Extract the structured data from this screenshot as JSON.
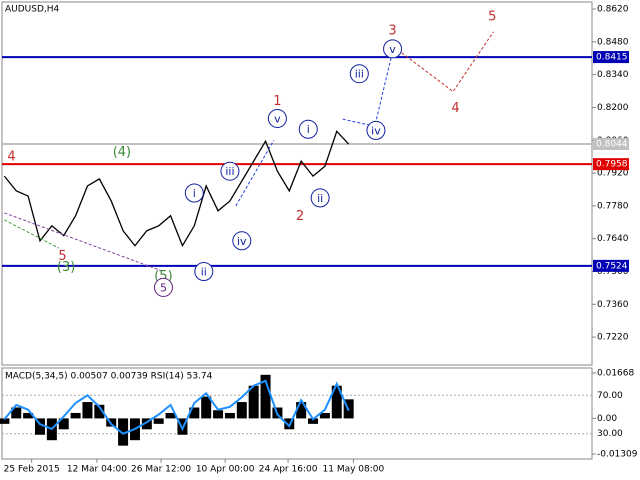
{
  "chart_data": [
    {
      "type": "line",
      "title": "AUDUSD,H4",
      "values": [
        0.7907,
        0.7844,
        0.7822,
        0.7631,
        0.7695,
        0.7653,
        0.7738,
        0.7865,
        0.7895,
        0.7801,
        0.7674,
        0.761,
        0.7674,
        0.7695,
        0.7738,
        0.761,
        0.7695,
        0.7865,
        0.7759,
        0.7801,
        0.7886,
        0.7971,
        0.8056,
        0.7928,
        0.7844,
        0.7971,
        0.7907,
        0.7949,
        0.8098,
        0.8044
      ],
      "color": "#000000",
      "xlim": [
        -0.2,
        49.5
      ],
      "ylim": [
        0.7101,
        0.865
      ],
      "xticks": [
        {
          "value": 2.3,
          "label": "25 Feb 2015"
        },
        {
          "value": 7.8,
          "label": "12 Mar 04:00"
        },
        {
          "value": 13.2,
          "label": "26 Mar 12:00"
        },
        {
          "value": 18.6,
          "label": "10 Apr 00:00"
        },
        {
          "value": 23.9,
          "label": "24 Apr 16:00"
        },
        {
          "value": 29.4,
          "label": "11 May 08:00"
        }
      ],
      "yticks": [
        {
          "value": 0.862,
          "label": "0.8620"
        },
        {
          "value": 0.848,
          "label": "0.8480"
        },
        {
          "value": 0.834,
          "label": "0.8340"
        },
        {
          "value": 0.82,
          "label": "0.8200"
        },
        {
          "value": 0.806,
          "label": "0.8060"
        },
        {
          "value": 0.792,
          "label": "0.7920"
        },
        {
          "value": 0.778,
          "label": "0.7780"
        },
        {
          "value": 0.764,
          "label": "0.7640"
        },
        {
          "value": 0.75,
          "label": "0.7500"
        },
        {
          "value": 0.736,
          "label": "0.7360"
        },
        {
          "value": 0.722,
          "label": "0.7220"
        }
      ],
      "levels": [
        {
          "value": 0.8415,
          "color": "#0000b4"
        },
        {
          "value": 0.8044,
          "color": "#c0c0c0"
        },
        {
          "value": 0.7958,
          "color": "#e00000"
        },
        {
          "value": 0.7524,
          "color": "#0000b4"
        }
      ],
      "projections": [
        {
          "color": "#c03030",
          "x": [
            32.8,
            37.8,
            41.2
          ],
          "values": [
            0.8459,
            0.8268,
            0.8523
          ]
        },
        {
          "color": "#2040e0",
          "x": [
            28.5,
            31.2,
            32.8
          ],
          "values": [
            0.815,
            0.812,
            0.8459
          ]
        },
        {
          "color": "#2040e0",
          "x": [
            19.5,
            22.7
          ],
          "values": [
            0.778,
            0.806
          ]
        },
        {
          "color": "#8040a0",
          "x": [
            0,
            13.4
          ],
          "values": [
            0.775,
            0.75
          ]
        },
        {
          "color": "#40a040",
          "x": [
            0,
            4.6
          ],
          "values": [
            0.772,
            0.76
          ]
        }
      ],
      "annotations": [
        {
          "text": "4",
          "x": 0.6,
          "y": 0.7992,
          "color": "#c03030",
          "circle": false
        },
        {
          "text": "(4)",
          "x": 9.9,
          "y": 0.8013,
          "color": "#3a8a3a",
          "circle": false
        },
        {
          "text": "5",
          "x": 4.9,
          "y": 0.7568,
          "color": "#c03030",
          "circle": false
        },
        {
          "text": "(3)",
          "x": 5.2,
          "y": 0.7521,
          "color": "#3a8a3a",
          "circle": false
        },
        {
          "text": "(5)",
          "x": 13.4,
          "y": 0.7483,
          "color": "#3a8a3a",
          "circle": false
        },
        {
          "text": "5",
          "x": 13.4,
          "y": 0.7432,
          "color": "#602080",
          "circle": true
        },
        {
          "text": "i",
          "x": 16.0,
          "y": 0.7835,
          "color": "#1020a0",
          "circle": true
        },
        {
          "text": "ii",
          "x": 16.8,
          "y": 0.75,
          "color": "#1020a0",
          "circle": true
        },
        {
          "text": "iii",
          "x": 19.0,
          "y": 0.7928,
          "color": "#1020a0",
          "circle": true
        },
        {
          "text": "iv",
          "x": 20.0,
          "y": 0.7631,
          "color": "#1020a0",
          "circle": true
        },
        {
          "text": "v",
          "x": 23.0,
          "y": 0.8153,
          "color": "#1020a0",
          "circle": true
        },
        {
          "text": "1",
          "x": 23.0,
          "y": 0.823,
          "color": "#c03030",
          "circle": false
        },
        {
          "text": "2",
          "x": 24.9,
          "y": 0.7738,
          "color": "#c03030",
          "circle": false
        },
        {
          "text": "i",
          "x": 25.6,
          "y": 0.8107,
          "color": "#1020a0",
          "circle": true
        },
        {
          "text": "ii",
          "x": 26.6,
          "y": 0.7814,
          "color": "#1020a0",
          "circle": true
        },
        {
          "text": "iii",
          "x": 29.9,
          "y": 0.8344,
          "color": "#1020a0",
          "circle": true
        },
        {
          "text": "iv",
          "x": 31.3,
          "y": 0.8102,
          "color": "#1020a0",
          "circle": true
        },
        {
          "text": "v",
          "x": 32.7,
          "y": 0.845,
          "color": "#1020a0",
          "circle": true
        },
        {
          "text": "3",
          "x": 32.7,
          "y": 0.8531,
          "color": "#c03030",
          "circle": false
        },
        {
          "text": "4",
          "x": 38.0,
          "y": 0.82,
          "color": "#c03030",
          "circle": false
        },
        {
          "text": "5",
          "x": 41.1,
          "y": 0.859,
          "color": "#c03030",
          "circle": false
        }
      ]
    },
    {
      "type": "indicator",
      "title": "MACD(5,34,5) 0.00507 0.00739 RSI(14) 53.74",
      "xlim": [
        -0.2,
        49.5
      ],
      "ylim": [
        -0.0149,
        0.0185
      ],
      "y2lim": [
        3.7,
        98.4
      ],
      "yticks": [
        0.01668,
        {
          "value": 0,
          "label": "0.00"
        },
        -0.01309
      ],
      "y2ticks": [
        {
          "value": 70,
          "label": "70.00"
        },
        {
          "value": 30,
          "label": "30.00"
        }
      ],
      "series": [
        {
          "type": "bar",
          "color": "#000000",
          "values": [
            -0.002,
            0.004,
            0.002,
            -0.006,
            -0.008,
            -0.004,
            0.002,
            0.006,
            0.005,
            -0.003,
            -0.01,
            -0.008,
            -0.004,
            -0.002,
            0.002,
            -0.006,
            0.004,
            0.008,
            0.003,
            0.002,
            0.006,
            0.012,
            0.016,
            0.004,
            -0.004,
            0.006,
            -0.002,
            0.002,
            0.012,
            0.007
          ]
        },
        {
          "type": "line",
          "axis": "y2",
          "color": "#1e90ff",
          "values": [
            45,
            60,
            55,
            40,
            35,
            48,
            62,
            70,
            58,
            40,
            30,
            35,
            42,
            50,
            60,
            35,
            62,
            72,
            55,
            58,
            68,
            80,
            85,
            50,
            38,
            65,
            45,
            55,
            82,
            54
          ]
        }
      ]
    }
  ]
}
